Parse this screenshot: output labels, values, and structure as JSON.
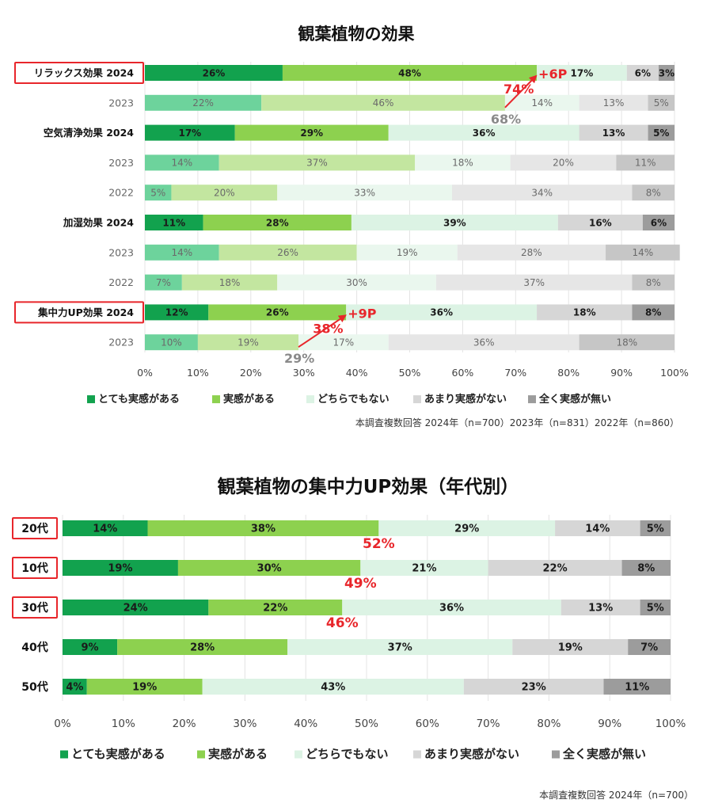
{
  "chart_data": [
    {
      "type": "bar",
      "orientation": "horizontal",
      "stacked": true,
      "title": "観葉植物の効果",
      "categories": [
        "リラックス効果 2024",
        "2023",
        "空気清浄効果 2024",
        "2023",
        "2022",
        "加湿効果 2024",
        "2023",
        "2022",
        "集中力UP効果 2024",
        "2023"
      ],
      "emphasis": [
        true,
        false,
        true,
        false,
        false,
        true,
        false,
        false,
        true,
        false
      ],
      "boxed": [
        true,
        false,
        false,
        false,
        false,
        false,
        false,
        false,
        true,
        false
      ],
      "series": [
        {
          "name": "とても実感がある",
          "values": [
            26,
            22,
            17,
            14,
            5,
            11,
            14,
            7,
            12,
            10
          ]
        },
        {
          "name": "実感がある",
          "values": [
            48,
            46,
            29,
            37,
            20,
            28,
            26,
            18,
            26,
            19
          ]
        },
        {
          "name": "どちらでもない",
          "values": [
            17,
            14,
            36,
            18,
            33,
            39,
            19,
            30,
            36,
            17
          ]
        },
        {
          "name": "あまり実感がない",
          "values": [
            6,
            13,
            13,
            20,
            34,
            16,
            28,
            37,
            18,
            36
          ]
        },
        {
          "name": "全く実感が無い",
          "values": [
            3,
            5,
            5,
            11,
            8,
            6,
            14,
            8,
            8,
            18
          ]
        }
      ],
      "xlim": [
        0,
        100
      ],
      "xticks": [
        "0%",
        "10%",
        "20%",
        "30%",
        "40%",
        "50%",
        "60%",
        "70%",
        "80%",
        "90%",
        "100%"
      ],
      "annotations": [
        {
          "row": 0,
          "value": 74,
          "label": "74%",
          "delta": "+6P",
          "prev_row": 1,
          "prev_value": 68,
          "prev_label": "68%"
        },
        {
          "row": 8,
          "value": 38,
          "label": "38%",
          "delta": "+9P",
          "prev_row": 9,
          "prev_value": 29,
          "prev_label": "29%"
        }
      ],
      "note": "本調査複数回答  2024年（n=700）2023年（n=831）2022年（n=860）",
      "legend_position": "bottom"
    },
    {
      "type": "bar",
      "orientation": "horizontal",
      "stacked": true,
      "title": "観葉植物の集中力UP効果（年代別）",
      "categories": [
        "20代",
        "10代",
        "30代",
        "40代",
        "50代"
      ],
      "boxed": [
        true,
        true,
        true,
        false,
        false
      ],
      "series": [
        {
          "name": "とても実感がある",
          "values": [
            14,
            19,
            24,
            9,
            4
          ]
        },
        {
          "name": "実感がある",
          "values": [
            38,
            30,
            22,
            28,
            19
          ]
        },
        {
          "name": "どちらでもない",
          "values": [
            29,
            21,
            36,
            37,
            43
          ]
        },
        {
          "name": "あまり実感がない",
          "values": [
            14,
            22,
            13,
            19,
            23
          ]
        },
        {
          "name": "全く実感が無い",
          "values": [
            5,
            8,
            5,
            7,
            11
          ]
        }
      ],
      "totals": [
        {
          "row": 0,
          "value": 52,
          "label": "52%"
        },
        {
          "row": 1,
          "value": 49,
          "label": "49%"
        },
        {
          "row": 2,
          "value": 46,
          "label": "46%"
        }
      ],
      "xlim": [
        0,
        100
      ],
      "xticks": [
        "0%",
        "10%",
        "20%",
        "30%",
        "40%",
        "50%",
        "60%",
        "70%",
        "80%",
        "90%",
        "100%"
      ],
      "note": "本調査複数回答  2024年（n=700）",
      "legend_position": "bottom"
    }
  ],
  "colors": {
    "strong": "#12a24e",
    "normal": "#8dd14f",
    "neutral": "#dcf3e4",
    "weak": "#d6d6d6",
    "none": "#9c9c9c",
    "strong_light": "#6dd39c",
    "normal_light": "#c3e6a0",
    "neutral_light": "#eaf7ee",
    "weak_light": "#e6e6e6",
    "none_light": "#c6c6c6",
    "accent": "#e8262b"
  }
}
